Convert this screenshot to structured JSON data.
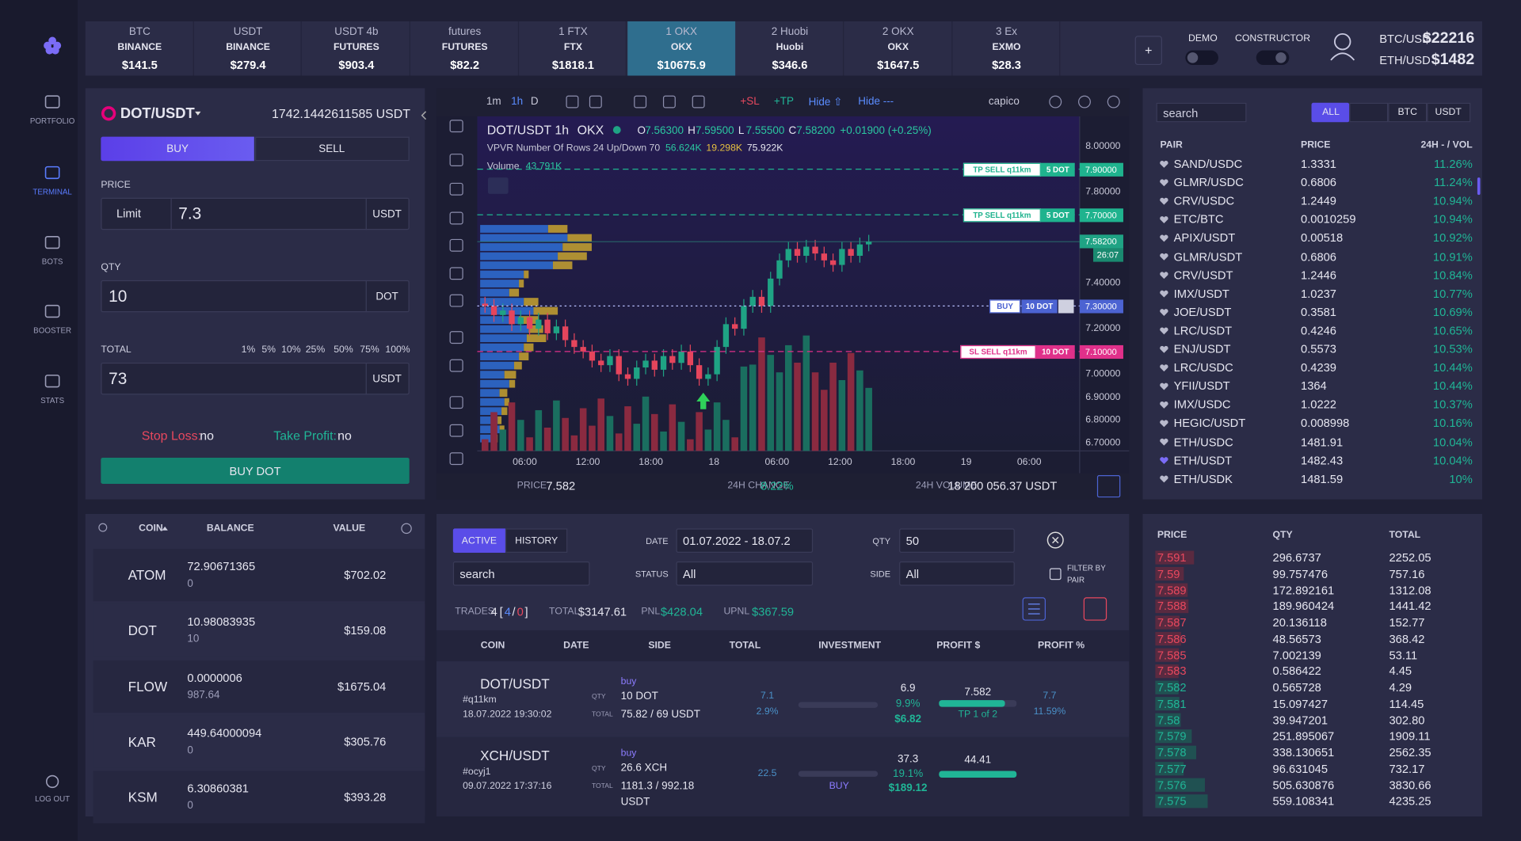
{
  "sidebar": {
    "items": [
      "PORTFOLIO",
      "TERMINAL",
      "BOTS",
      "BOOSTER",
      "STATS"
    ],
    "logout": "LOG OUT"
  },
  "exchanges": [
    {
      "name": "BTC",
      "exchange": "BINANCE",
      "balance": "$141.5"
    },
    {
      "name": "USDT",
      "exchange": "BINANCE",
      "balance": "$279.4"
    },
    {
      "name": "USDT 4b",
      "exchange": "FUTURES",
      "balance": "$903.4"
    },
    {
      "name": "futures",
      "exchange": "FUTURES",
      "balance": "$82.2"
    },
    {
      "name": "1 FTX",
      "exchange": "FTX",
      "balance": "$1818.1"
    },
    {
      "name": "1 OKX",
      "exchange": "OKX",
      "balance": "$10675.9"
    },
    {
      "name": "2 Huobi",
      "exchange": "Huobi",
      "balance": "$346.6"
    },
    {
      "name": "2 OKX",
      "exchange": "OKX",
      "balance": "$1647.5"
    },
    {
      "name": "3 Ex",
      "exchange": "EXMO",
      "balance": "$28.3"
    }
  ],
  "header": {
    "add": "+",
    "demo": "DEMO",
    "constructor": "CONSTRUCTOR",
    "tickers": [
      {
        "pair": "BTC/USD",
        "price": "$22216"
      },
      {
        "pair": "ETH/USD",
        "price": "$1482"
      }
    ]
  },
  "order_form": {
    "pair": "DOT/USDT",
    "balance": "1742.1442611585 USDT",
    "tabs": [
      "BUY",
      "SELL"
    ],
    "price_label": "PRICE",
    "order_type": "Limit",
    "price": "7.3",
    "price_unit": "USDT",
    "qty_label": "QTY",
    "qty": "10",
    "qty_unit": "DOT",
    "total_label": "TOTAL",
    "percents": [
      "1%",
      "5%",
      "10%",
      "25%",
      "50%",
      "75%",
      "100%"
    ],
    "total": "73",
    "total_unit": "USDT",
    "stop_loss": "Stop Loss:",
    "stop_loss_value": "no",
    "take_profit": "Take Profit:",
    "take_profit_value": "no",
    "submit": "BUY DOT"
  },
  "chart": {
    "intervals": [
      "1m",
      "1h",
      "D"
    ],
    "tools": [
      "+SL",
      "+TP",
      "Hide ⇧",
      "Hide ---"
    ],
    "account": "capico",
    "symbol": "DOT/USDT",
    "interval": "1h",
    "exchange": "OKX",
    "ohlc": [
      {
        "label": "O",
        "value": "7.56300"
      },
      {
        "label": "H",
        "value": "7.59500"
      },
      {
        "label": "L",
        "value": "7.55500"
      },
      {
        "label": "C",
        "value": "7.58200"
      }
    ],
    "change": "+0.01900 (+0.25%)",
    "vpvr": "VPVR Number Of Rows 24 Up/Down 70",
    "vpvr_values": [
      "56.624K",
      "19.298K",
      "75.922K"
    ],
    "volume_label": "Volume",
    "volume": "43.791K",
    "price_axis": [
      "8.00000",
      "7.80000",
      "7.40000",
      "7.20000",
      "7.00000",
      "6.90000",
      "6.80000",
      "6.70000"
    ],
    "time_axis": [
      "06:00",
      "12:00",
      "18:00",
      "18",
      "06:00",
      "12:00",
      "18:00",
      "19",
      "06:00"
    ],
    "orders": [
      {
        "label": "TP SELL q11km",
        "qty": "5 DOT",
        "price": "7.90000",
        "color": "#1fb38e"
      },
      {
        "label": "TP SELL q11km",
        "qty": "5 DOT",
        "price": "7.70000",
        "color": "#1fb38e"
      },
      {
        "label": "BUY",
        "qty": "10 DOT",
        "price": "7.30000",
        "color": "#4c63d2"
      },
      {
        "label": "SL SELL q11km",
        "qty": "10 DOT",
        "price": "7.10000",
        "color": "#e0308a"
      }
    ],
    "last_price": "7.58200",
    "countdown": "26:07",
    "footer": {
      "price_label": "PRICE",
      "price": "7.582",
      "change_label": "24H CHANGE",
      "change": "8.22%",
      "volume_label": "24H VOLUME",
      "volume": "18 200 056.37 USDT"
    }
  },
  "markets": {
    "search": "search",
    "tabs": [
      "ALL",
      "BTC",
      "USDT"
    ],
    "columns": [
      "PAIR",
      "PRICE",
      "24H - / VOL"
    ],
    "rows": [
      [
        "SAND/USDC",
        "1.3331",
        "11.26%"
      ],
      [
        "GLMR/USDC",
        "0.6806",
        "11.24%"
      ],
      [
        "CRV/USDC",
        "1.2449",
        "10.94%"
      ],
      [
        "ETC/BTC",
        "0.0010259",
        "10.94%"
      ],
      [
        "APIX/USDT",
        "0.00518",
        "10.92%"
      ],
      [
        "GLMR/USDT",
        "0.6806",
        "10.91%"
      ],
      [
        "CRV/USDT",
        "1.2446",
        "10.84%"
      ],
      [
        "IMX/USDT",
        "1.0237",
        "10.77%"
      ],
      [
        "JOE/USDT",
        "0.3581",
        "10.69%"
      ],
      [
        "LRC/USDT",
        "0.4246",
        "10.65%"
      ],
      [
        "ENJ/USDT",
        "0.5573",
        "10.53%"
      ],
      [
        "LRC/USDC",
        "0.4239",
        "10.44%"
      ],
      [
        "YFII/USDT",
        "1364",
        "10.44%"
      ],
      [
        "IMX/USDC",
        "1.0222",
        "10.37%"
      ],
      [
        "HEGIC/USDT",
        "0.008998",
        "10.16%"
      ],
      [
        "ETH/USDC",
        "1481.91",
        "10.04%"
      ],
      [
        "ETH/USDT",
        "1482.43",
        "10.04%"
      ],
      [
        "ETH/USDK",
        "1481.59",
        "10%"
      ]
    ]
  },
  "balances": {
    "columns": [
      "COIN",
      "BALANCE",
      "VALUE"
    ],
    "rows": [
      {
        "coin": "ATOM",
        "balance": "72.90671365",
        "locked": "0",
        "value": "$702.02"
      },
      {
        "coin": "DOT",
        "balance": "10.98083935",
        "locked": "10",
        "value": "$159.08"
      },
      {
        "coin": "FLOW",
        "balance": "0.0000006",
        "locked": "987.64",
        "value": "$1675.04"
      },
      {
        "coin": "KAR",
        "balance": "449.64000094",
        "locked": "0",
        "value": "$305.76"
      },
      {
        "coin": "KSM",
        "balance": "6.30860381",
        "locked": "0",
        "value": "$393.28"
      }
    ]
  },
  "trades": {
    "tabs": [
      "ACTIVE",
      "HISTORY"
    ],
    "filters": {
      "date_label": "DATE",
      "date": "01.07.2022 - 18.07.2",
      "qty_label": "QTY",
      "qty": "50",
      "status_label": "STATUS",
      "status": "All",
      "side_label": "SIDE",
      "side": "All",
      "search": "search",
      "filter_by_pair": [
        "FILTER BY",
        "PAIR"
      ]
    },
    "summary": {
      "trades_label": "TRADES",
      "count": "4",
      "brackets": [
        "[",
        "/",
        "]"
      ],
      "open": "4",
      "closed": "0",
      "total_label": "TOTAL",
      "total": "$3147.61",
      "pnl_label": "PNL",
      "pnl": "$428.04",
      "upnl_label": "UPNL",
      "upnl": "$367.59"
    },
    "columns": [
      "COIN",
      "DATE",
      "SIDE",
      "TOTAL",
      "INVESTMENT",
      "PROFIT $",
      "PROFIT %"
    ],
    "row_qty_label": "QTY",
    "row_total_label": "TOTAL",
    "rows": [
      {
        "pair": "DOT/USDT",
        "tag": "#q11km",
        "date": "18.07.2022 19:30:02",
        "side": "buy",
        "qty": "10 DOT",
        "total": "75.82 / 69 USDT",
        "invest": "7.1",
        "invest_pct": "2.9%",
        "profit": "6.9",
        "profit_pct": "9.9%",
        "profit_usd": "$6.82",
        "target": "7.582",
        "target_note": "TP 1 of 2",
        "tp": "7.7",
        "tp_pct": "11.59%"
      },
      {
        "pair": "XCH/USDT",
        "tag": "#ocyj1",
        "date": "09.07.2022 17:37:16",
        "side": "buy",
        "qty": "26.6 XCH",
        "total": "1181.3 / 992.18 USDT",
        "invest": "22.5",
        "status": "BUY",
        "profit": "37.3",
        "profit_pct": "19.1%",
        "profit_usd": "$189.12",
        "target": "44.41"
      }
    ]
  },
  "orderbook": {
    "columns": [
      "PRICE",
      "QTY",
      "TOTAL"
    ],
    "asks": [
      [
        "7.591",
        "296.6737",
        "2252.05"
      ],
      [
        "7.59",
        "99.757476",
        "757.16"
      ],
      [
        "7.589",
        "172.892161",
        "1312.08"
      ],
      [
        "7.588",
        "189.960424",
        "1441.42"
      ],
      [
        "7.587",
        "20.136118",
        "152.77"
      ],
      [
        "7.586",
        "48.56573",
        "368.42"
      ],
      [
        "7.585",
        "7.002139",
        "53.11"
      ],
      [
        "7.583",
        "0.586422",
        "4.45"
      ]
    ],
    "bids": [
      [
        "7.582",
        "0.565728",
        "4.29"
      ],
      [
        "7.581",
        "15.097427",
        "114.45"
      ],
      [
        "7.58",
        "39.947201",
        "302.80"
      ],
      [
        "7.579",
        "251.895067",
        "1909.11"
      ],
      [
        "7.578",
        "338.130651",
        "2562.35"
      ],
      [
        "7.577",
        "96.631045",
        "732.17"
      ],
      [
        "7.576",
        "505.630876",
        "3830.66"
      ],
      [
        "7.575",
        "559.108341",
        "4235.25"
      ]
    ]
  }
}
